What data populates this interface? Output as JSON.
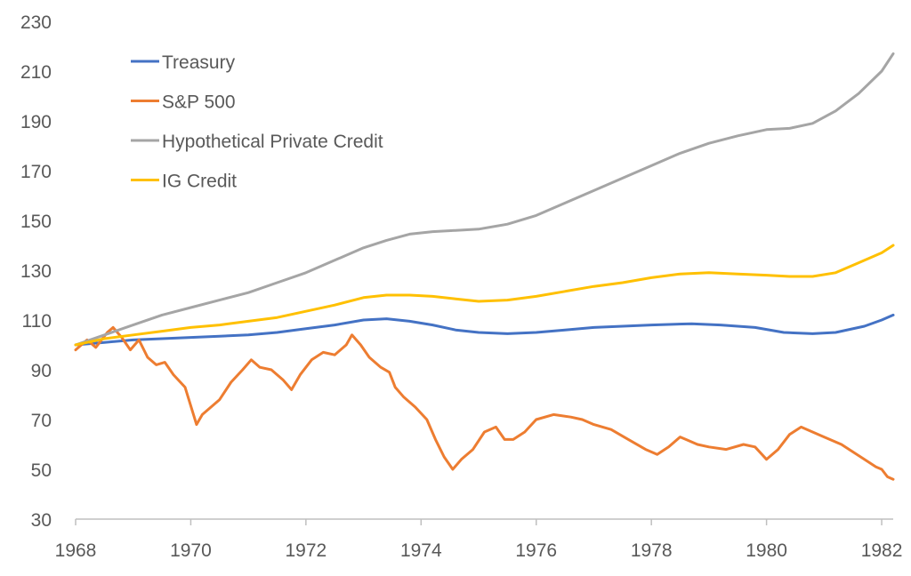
{
  "chart_data": {
    "type": "line",
    "title": "",
    "xlabel": "",
    "ylabel": "",
    "xlim": [
      1968,
      1982.2
    ],
    "ylim": [
      30,
      230
    ],
    "x_ticks": [
      "1968",
      "1970",
      "1972",
      "1974",
      "1976",
      "1978",
      "1980",
      "1982"
    ],
    "y_ticks": [
      "30",
      "50",
      "70",
      "90",
      "110",
      "130",
      "150",
      "170",
      "190",
      "210",
      "230"
    ],
    "grid": false,
    "legend_placement": "top-left",
    "series": [
      {
        "name": "Treasury",
        "color": "#4472C4",
        "points": [
          [
            1968,
            100
          ],
          [
            1968.5,
            101
          ],
          [
            1969,
            102
          ],
          [
            1969.5,
            102.5
          ],
          [
            1970,
            103
          ],
          [
            1970.5,
            103.5
          ],
          [
            1971,
            104
          ],
          [
            1971.5,
            105
          ],
          [
            1972,
            106.5
          ],
          [
            1972.5,
            108
          ],
          [
            1973,
            110
          ],
          [
            1973.4,
            110.5
          ],
          [
            1973.8,
            109.5
          ],
          [
            1974.2,
            108
          ],
          [
            1974.6,
            106
          ],
          [
            1975,
            105
          ],
          [
            1975.5,
            104.5
          ],
          [
            1976,
            105
          ],
          [
            1976.5,
            106
          ],
          [
            1977,
            107
          ],
          [
            1977.5,
            107.5
          ],
          [
            1978,
            108
          ],
          [
            1978.7,
            108.5
          ],
          [
            1979.2,
            108
          ],
          [
            1979.8,
            107
          ],
          [
            1980.3,
            105
          ],
          [
            1980.8,
            104.5
          ],
          [
            1981.2,
            105
          ],
          [
            1981.7,
            107.5
          ],
          [
            1982,
            110
          ],
          [
            1982.2,
            112
          ]
        ]
      },
      {
        "name": "S&P 500",
        "color": "#ED7D31",
        "points": [
          [
            1968,
            98
          ],
          [
            1968.2,
            102
          ],
          [
            1968.35,
            99
          ],
          [
            1968.55,
            105
          ],
          [
            1968.65,
            107
          ],
          [
            1968.8,
            103
          ],
          [
            1968.95,
            98
          ],
          [
            1969.1,
            102
          ],
          [
            1969.25,
            95
          ],
          [
            1969.4,
            92
          ],
          [
            1969.55,
            93
          ],
          [
            1969.7,
            88
          ],
          [
            1969.9,
            83
          ],
          [
            1970.1,
            68
          ],
          [
            1970.2,
            72
          ],
          [
            1970.35,
            75
          ],
          [
            1970.5,
            78
          ],
          [
            1970.7,
            85
          ],
          [
            1970.9,
            90
          ],
          [
            1971.05,
            94
          ],
          [
            1971.2,
            91
          ],
          [
            1971.4,
            90
          ],
          [
            1971.6,
            86
          ],
          [
            1971.75,
            82
          ],
          [
            1971.9,
            88
          ],
          [
            1972.1,
            94
          ],
          [
            1972.3,
            97
          ],
          [
            1972.5,
            96
          ],
          [
            1972.7,
            100
          ],
          [
            1972.8,
            104
          ],
          [
            1972.95,
            100
          ],
          [
            1973.1,
            95
          ],
          [
            1973.3,
            91
          ],
          [
            1973.45,
            89
          ],
          [
            1973.55,
            83
          ],
          [
            1973.7,
            79
          ],
          [
            1973.9,
            75
          ],
          [
            1974.1,
            70
          ],
          [
            1974.25,
            62
          ],
          [
            1974.4,
            55
          ],
          [
            1974.55,
            50
          ],
          [
            1974.7,
            54
          ],
          [
            1974.9,
            58
          ],
          [
            1975.1,
            65
          ],
          [
            1975.3,
            67
          ],
          [
            1975.45,
            62
          ],
          [
            1975.6,
            62
          ],
          [
            1975.8,
            65
          ],
          [
            1976,
            70
          ],
          [
            1976.3,
            72
          ],
          [
            1976.6,
            71
          ],
          [
            1976.8,
            70
          ],
          [
            1977,
            68
          ],
          [
            1977.3,
            66
          ],
          [
            1977.6,
            62
          ],
          [
            1977.9,
            58
          ],
          [
            1978.1,
            56
          ],
          [
            1978.3,
            59
          ],
          [
            1978.5,
            63
          ],
          [
            1978.6,
            62
          ],
          [
            1978.8,
            60
          ],
          [
            1979,
            59
          ],
          [
            1979.3,
            58
          ],
          [
            1979.6,
            60
          ],
          [
            1979.8,
            59
          ],
          [
            1980,
            54
          ],
          [
            1980.2,
            58
          ],
          [
            1980.4,
            64
          ],
          [
            1980.6,
            67
          ],
          [
            1980.8,
            65
          ],
          [
            1981,
            63
          ],
          [
            1981.3,
            60
          ],
          [
            1981.5,
            57
          ],
          [
            1981.7,
            54
          ],
          [
            1981.9,
            51
          ],
          [
            1982,
            50
          ],
          [
            1982.1,
            47
          ],
          [
            1982.2,
            46
          ]
        ]
      },
      {
        "name": "Hypothetical Private Credit",
        "color": "#A5A5A5",
        "points": [
          [
            1968,
            100
          ],
          [
            1968.5,
            104
          ],
          [
            1969,
            108
          ],
          [
            1969.5,
            112
          ],
          [
            1970,
            115
          ],
          [
            1970.5,
            118
          ],
          [
            1971,
            121
          ],
          [
            1971.5,
            125
          ],
          [
            1972,
            129
          ],
          [
            1972.5,
            134
          ],
          [
            1973,
            139
          ],
          [
            1973.4,
            142
          ],
          [
            1973.8,
            144.5
          ],
          [
            1974.2,
            145.5
          ],
          [
            1974.6,
            146
          ],
          [
            1975,
            146.5
          ],
          [
            1975.5,
            148.5
          ],
          [
            1976,
            152
          ],
          [
            1976.5,
            157
          ],
          [
            1977,
            162
          ],
          [
            1977.5,
            167
          ],
          [
            1978,
            172
          ],
          [
            1978.5,
            177
          ],
          [
            1979,
            181
          ],
          [
            1979.5,
            184
          ],
          [
            1980,
            186.5
          ],
          [
            1980.4,
            187
          ],
          [
            1980.8,
            189
          ],
          [
            1981.2,
            194
          ],
          [
            1981.6,
            201
          ],
          [
            1982,
            210
          ],
          [
            1982.2,
            217
          ]
        ]
      },
      {
        "name": "IG Credit",
        "color": "#FFC000",
        "points": [
          [
            1968,
            100
          ],
          [
            1968.5,
            102.5
          ],
          [
            1969,
            104
          ],
          [
            1969.5,
            105.5
          ],
          [
            1970,
            107
          ],
          [
            1970.5,
            108
          ],
          [
            1971,
            109.5
          ],
          [
            1971.5,
            111
          ],
          [
            1972,
            113.5
          ],
          [
            1972.5,
            116
          ],
          [
            1973,
            119
          ],
          [
            1973.4,
            120
          ],
          [
            1973.8,
            120
          ],
          [
            1974.2,
            119.5
          ],
          [
            1974.6,
            118.5
          ],
          [
            1975,
            117.5
          ],
          [
            1975.5,
            118
          ],
          [
            1976,
            119.5
          ],
          [
            1976.5,
            121.5
          ],
          [
            1977,
            123.5
          ],
          [
            1977.5,
            125
          ],
          [
            1978,
            127
          ],
          [
            1978.5,
            128.5
          ],
          [
            1979,
            129
          ],
          [
            1979.5,
            128.5
          ],
          [
            1980,
            128
          ],
          [
            1980.4,
            127.5
          ],
          [
            1980.8,
            127.5
          ],
          [
            1981.2,
            129
          ],
          [
            1981.6,
            133
          ],
          [
            1982,
            137
          ],
          [
            1982.2,
            140
          ]
        ]
      }
    ]
  }
}
